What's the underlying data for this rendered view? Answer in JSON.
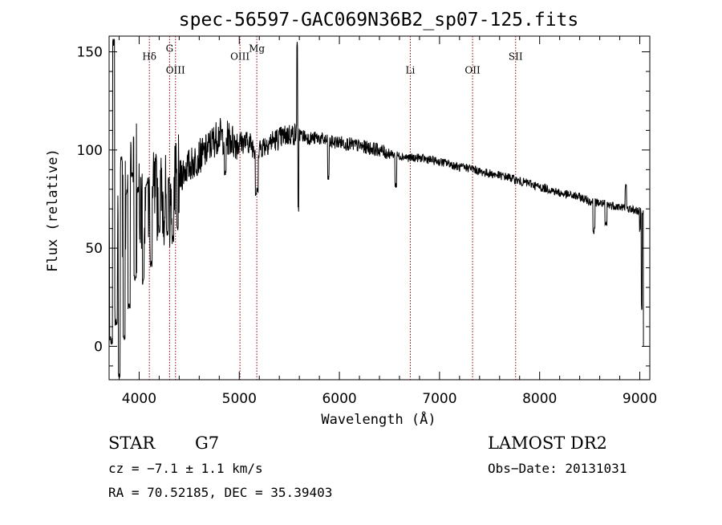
{
  "chart_data": {
    "type": "line",
    "title": "spec-56597-GAC069N36B2_sp07-125.fits",
    "xlabel": "Wavelength (Å)",
    "ylabel": "Flux (relative)",
    "xlim": [
      3700,
      9100
    ],
    "ylim": [
      -17,
      158
    ],
    "xticks": [
      4000,
      5000,
      6000,
      7000,
      8000,
      9000
    ],
    "yticks": [
      0,
      50,
      100,
      150
    ],
    "grid": false,
    "series": [
      {
        "color": "#000000",
        "anchors": [
          [
            3700,
            70
          ],
          [
            3750,
            60
          ],
          [
            3800,
            58
          ],
          [
            3850,
            66
          ],
          [
            3900,
            70
          ],
          [
            3950,
            72
          ],
          [
            4000,
            74
          ],
          [
            4050,
            72
          ],
          [
            4100,
            72
          ],
          [
            4150,
            76
          ],
          [
            4200,
            76
          ],
          [
            4250,
            75
          ],
          [
            4300,
            72
          ],
          [
            4350,
            78
          ],
          [
            4400,
            85
          ],
          [
            4450,
            90
          ],
          [
            4500,
            92
          ],
          [
            4550,
            94
          ],
          [
            4600,
            97
          ],
          [
            4650,
            98
          ],
          [
            4700,
            102
          ],
          [
            4750,
            105
          ],
          [
            4800,
            108
          ],
          [
            4850,
            106
          ],
          [
            4900,
            106
          ],
          [
            4950,
            104
          ],
          [
            5000,
            104
          ],
          [
            5050,
            104
          ],
          [
            5100,
            104
          ],
          [
            5150,
            101
          ],
          [
            5200,
            101
          ],
          [
            5300,
            104
          ],
          [
            5400,
            106
          ],
          [
            5500,
            108
          ],
          [
            5600,
            108
          ],
          [
            5700,
            106
          ],
          [
            5800,
            106
          ],
          [
            5900,
            104
          ],
          [
            6000,
            104
          ],
          [
            6100,
            103
          ],
          [
            6200,
            102
          ],
          [
            6300,
            101
          ],
          [
            6400,
            100
          ],
          [
            6500,
            98
          ],
          [
            6600,
            97
          ],
          [
            6700,
            96
          ],
          [
            6800,
            96
          ],
          [
            6900,
            95
          ],
          [
            7000,
            94
          ],
          [
            7100,
            93
          ],
          [
            7200,
            91
          ],
          [
            7300,
            91
          ],
          [
            7400,
            89
          ],
          [
            7500,
            88
          ],
          [
            7600,
            87
          ],
          [
            7700,
            86
          ],
          [
            7800,
            84
          ],
          [
            7900,
            83
          ],
          [
            8000,
            81
          ],
          [
            8100,
            80
          ],
          [
            8200,
            78
          ],
          [
            8300,
            77
          ],
          [
            8400,
            76
          ],
          [
            8500,
            74
          ],
          [
            8600,
            73
          ],
          [
            8700,
            72
          ],
          [
            8800,
            71
          ],
          [
            8900,
            70
          ],
          [
            8980,
            69
          ]
        ],
        "features": [
          [
            3720,
            3,
            15
          ],
          [
            3745,
            155,
            10
          ],
          [
            3770,
            12,
            12
          ],
          [
            3800,
            -14,
            10
          ],
          [
            3825,
            96,
            10
          ],
          [
            3850,
            5,
            12
          ],
          [
            3875,
            78,
            10
          ],
          [
            3900,
            20,
            12
          ],
          [
            3930,
            88,
            10
          ],
          [
            3960,
            35,
            12
          ],
          [
            3990,
            80,
            10
          ],
          [
            4040,
            33,
            10
          ],
          [
            4080,
            84,
            12
          ],
          [
            4120,
            42,
            10
          ],
          [
            4200,
            60,
            10
          ],
          [
            4280,
            58,
            10
          ],
          [
            4340,
            55,
            8
          ],
          [
            4383,
            60,
            8
          ],
          [
            4860,
            88,
            10
          ],
          [
            5170,
            78,
            10
          ],
          [
            5183,
            80,
            8
          ],
          [
            5577,
            154,
            5
          ],
          [
            5590,
            70,
            5
          ],
          [
            5890,
            86,
            8
          ],
          [
            6563,
            82,
            10
          ],
          [
            8542,
            59,
            10
          ],
          [
            8662,
            62,
            10
          ],
          [
            8860,
            81,
            8
          ],
          [
            9000,
            60,
            5
          ],
          [
            9020,
            20,
            5
          ],
          [
            9040,
            0,
            5
          ]
        ]
      }
    ],
    "lines": [
      {
        "label": "Hδ",
        "x": 4102,
        "label_y": 146
      },
      {
        "label": "G",
        "x": 4304,
        "label_y": 150
      },
      {
        "label": "OIII",
        "x": 4363,
        "label_y": 139
      },
      {
        "label": "OIII",
        "x": 5007,
        "label_y": 146
      },
      {
        "label": "Mg",
        "x": 5175,
        "label_y": 150
      },
      {
        "label": "Li",
        "x": 6708,
        "label_y": 139
      },
      {
        "label": "OII",
        "x": 7330,
        "label_y": 139
      },
      {
        "label": "SII",
        "x": 7760,
        "label_y": 146
      }
    ],
    "line_color": "#8b0000"
  },
  "info": {
    "object_type": "STAR",
    "subclass": "G7",
    "cz": "cz = −7.1 ± 1.1 km/s",
    "radec": "RA =  70.52185, DEC =  35.39403",
    "survey": "LAMOST DR2",
    "obs_date": "Obs−Date: 20131031"
  }
}
